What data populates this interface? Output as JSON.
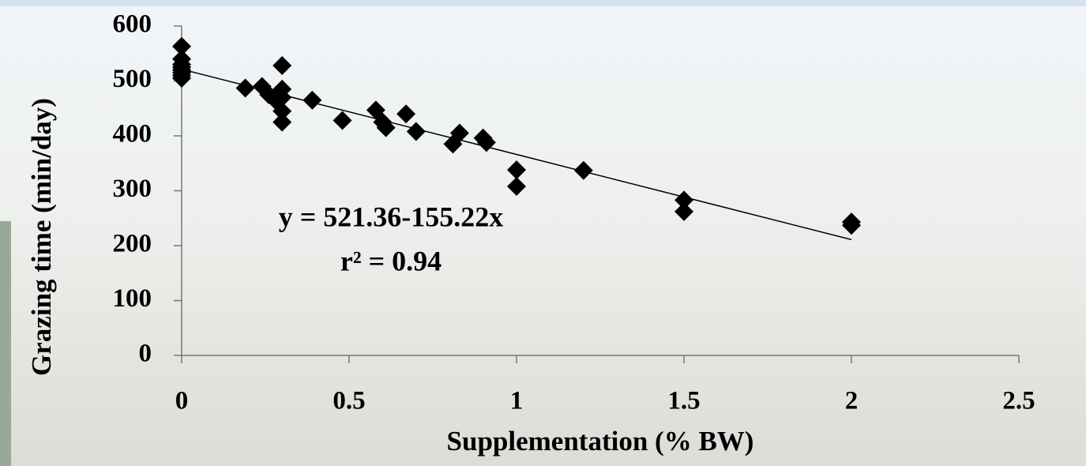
{
  "chart_data": {
    "type": "scatter",
    "xlabel": "Supplementation (% BW)",
    "ylabel": "Grazing time (min/day)",
    "annotations": [
      "y = 521.36-155.22x",
      "r² = 0.94"
    ],
    "x": [
      0,
      0,
      0,
      0,
      0,
      0,
      0,
      0,
      0.19,
      0.24,
      0.26,
      0.28,
      0.3,
      0.3,
      0.3,
      0.3,
      0.3,
      0.39,
      0.48,
      0.58,
      0.6,
      0.61,
      0.67,
      0.7,
      0.81,
      0.83,
      0.9,
      0.91,
      1,
      1,
      1.2,
      1.5,
      1.5,
      2,
      2
    ],
    "values": [
      563,
      540,
      530,
      525,
      520,
      515,
      510,
      505,
      487,
      490,
      475,
      465,
      528,
      485,
      470,
      445,
      425,
      465,
      428,
      447,
      425,
      415,
      440,
      408,
      385,
      405,
      396,
      388,
      338,
      308,
      337,
      283,
      262,
      243,
      237
    ],
    "color": "#000000",
    "trendline": {
      "intercept": 521.36,
      "slope": -155.22
    },
    "xlim": [
      0,
      2.5
    ],
    "xticks": [
      0,
      0.5,
      1,
      1.5,
      2,
      2.5
    ],
    "ylim": [
      0,
      600
    ],
    "yticks": [
      0,
      100,
      200,
      300,
      400,
      500,
      600
    ]
  }
}
